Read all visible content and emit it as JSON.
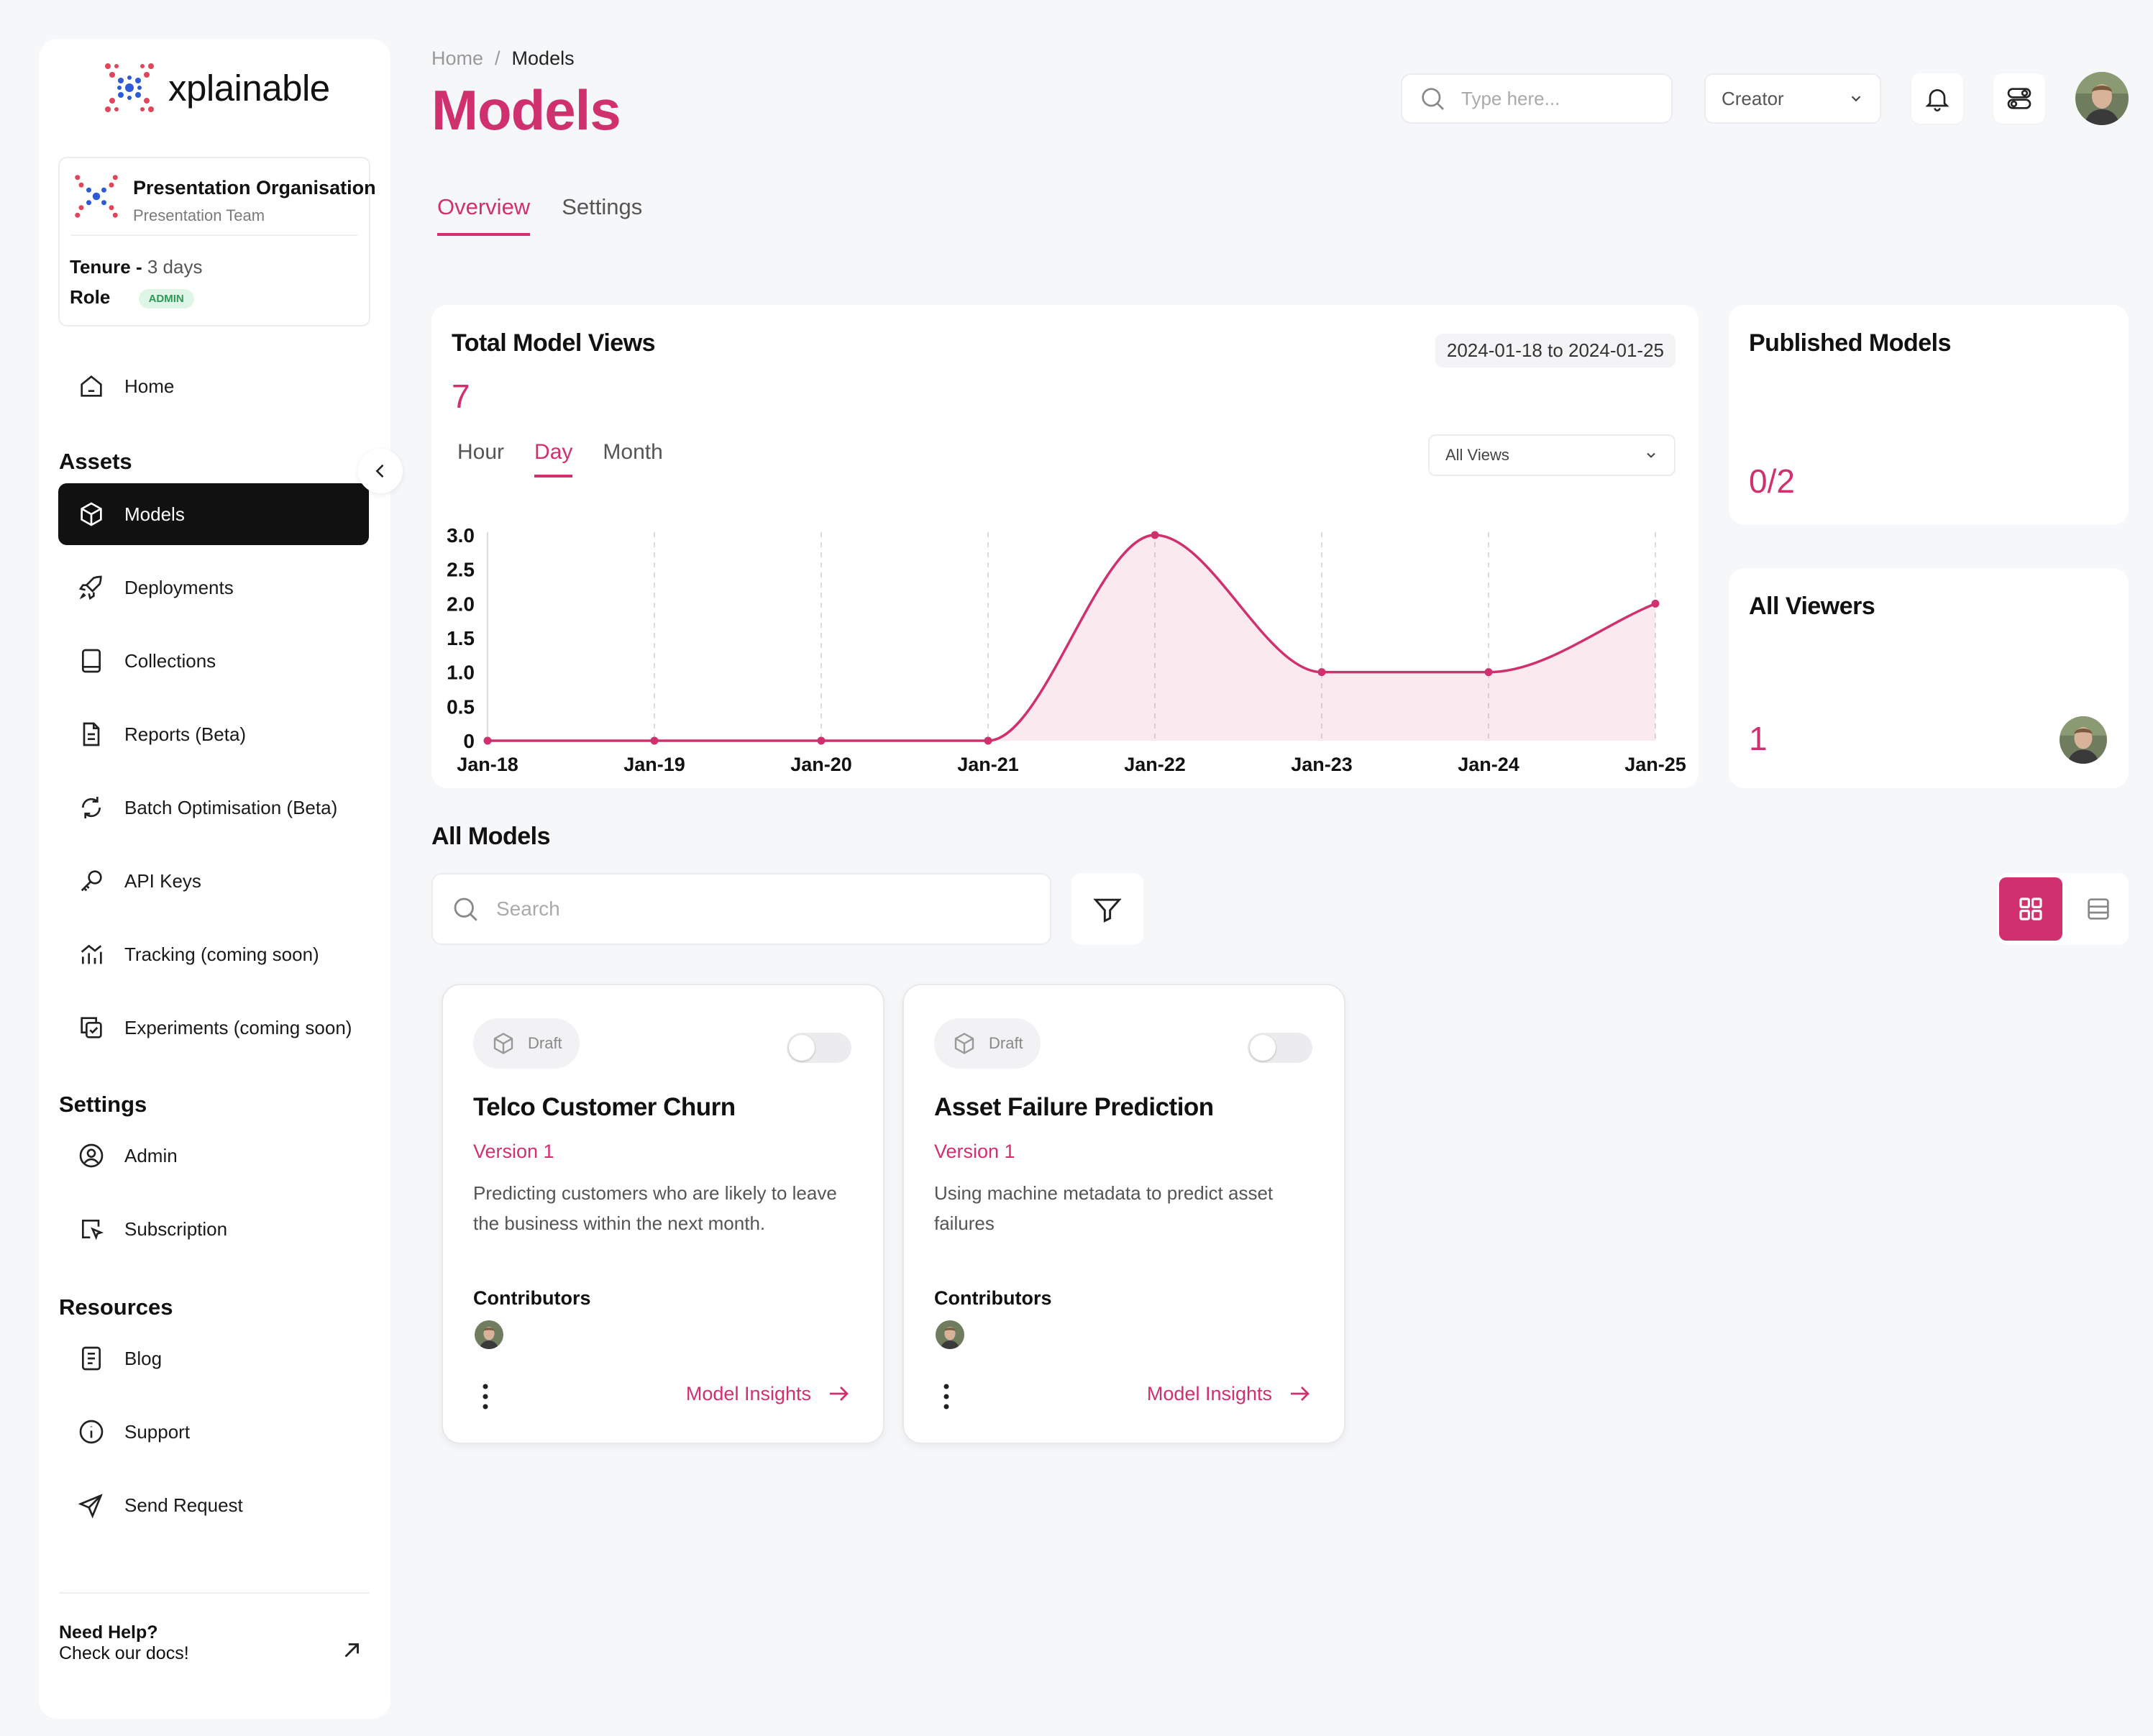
{
  "brand": {
    "name": "xplainable"
  },
  "org": {
    "name": "Presentation Organisation",
    "team": "Presentation Team",
    "tenure_label": "Tenure - ",
    "tenure_value": "3 days",
    "role_label": "Role",
    "role_badge": "ADMIN"
  },
  "nav": {
    "home": "Home",
    "assets_title": "Assets",
    "assets": [
      {
        "label": "Models",
        "icon": "cube-icon",
        "active": true
      },
      {
        "label": "Deployments",
        "icon": "rocket-icon"
      },
      {
        "label": "Collections",
        "icon": "book-icon"
      },
      {
        "label": "Reports (Beta)",
        "icon": "document-icon"
      },
      {
        "label": "Batch Optimisation (Beta)",
        "icon": "refresh-icon"
      },
      {
        "label": "API Keys",
        "icon": "key-icon"
      },
      {
        "label": "Tracking (coming soon)",
        "icon": "chart-icon"
      },
      {
        "label": "Experiments (coming soon)",
        "icon": "copy-icon"
      }
    ],
    "settings_title": "Settings",
    "settings": [
      {
        "label": "Admin",
        "icon": "user-circle-icon"
      },
      {
        "label": "Subscription",
        "icon": "cursor-icon"
      }
    ],
    "resources_title": "Resources",
    "resources": [
      {
        "label": "Blog",
        "icon": "blog-icon"
      },
      {
        "label": "Support",
        "icon": "info-icon"
      },
      {
        "label": "Send Request",
        "icon": "send-icon"
      }
    ]
  },
  "help": {
    "title": "Need Help?",
    "subtitle": "Check our docs!"
  },
  "header": {
    "breadcrumb_home": "Home",
    "breadcrumb_sep": "/",
    "breadcrumb_current": "Models",
    "title": "Models",
    "search_placeholder": "Type here...",
    "role_select": "Creator"
  },
  "tabs": {
    "overview": "Overview",
    "settings": "Settings"
  },
  "views": {
    "title": "Total Model Views",
    "date_range": "2024-01-18 to 2024-01-25",
    "total": "7",
    "range_tabs": [
      "Hour",
      "Day",
      "Month"
    ],
    "active_range": "Day",
    "filter": "All Views"
  },
  "chart_data": {
    "type": "area",
    "title": "Total Model Views",
    "categories": [
      "Jan-18",
      "Jan-19",
      "Jan-20",
      "Jan-21",
      "Jan-22",
      "Jan-23",
      "Jan-24",
      "Jan-25"
    ],
    "values": [
      0,
      0,
      0,
      0,
      3,
      1,
      1,
      2
    ],
    "y_ticks": [
      "0",
      "0.5",
      "1.0",
      "1.5",
      "2.0",
      "2.5",
      "3.0"
    ],
    "ylim": [
      0,
      3
    ],
    "grid": "vertical dashed",
    "color": "#d1306e"
  },
  "published": {
    "title": "Published Models",
    "value": "0/2"
  },
  "viewers": {
    "title": "All Viewers",
    "value": "1"
  },
  "all_models": {
    "title": "All Models",
    "search_placeholder": "Search",
    "cards": [
      {
        "status": "Draft",
        "title": "Telco Customer Churn",
        "version": "Version 1",
        "description": "Predicting customers who are likely to leave the business within the next month.",
        "contributors_label": "Contributors",
        "link": "Model Insights"
      },
      {
        "status": "Draft",
        "title": "Asset Failure Prediction",
        "version": "Version 1",
        "description": "Using machine metadata to predict asset failures",
        "contributors_label": "Contributors",
        "link": "Model Insights"
      }
    ]
  },
  "colors": {
    "accent": "#d1306e",
    "active_nav": "#111111",
    "background": "#f6f7f9"
  }
}
